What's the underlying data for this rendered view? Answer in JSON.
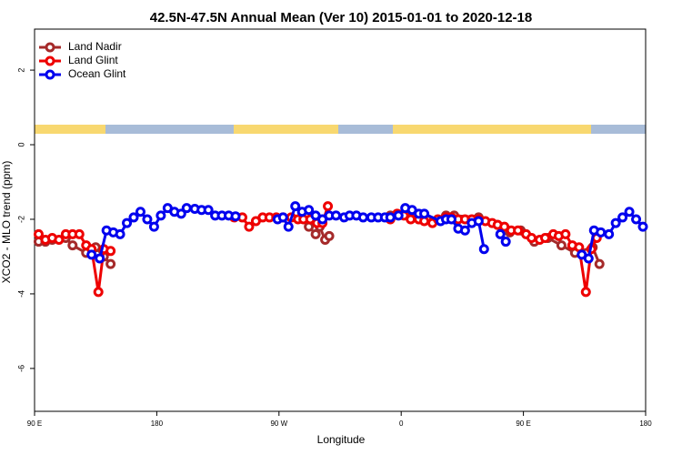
{
  "chart_data": {
    "type": "line",
    "title": "42.5N-47.5N Annual Mean (Ver 10)   2015-01-01 to 2020-12-18",
    "xlabel": "Longitude",
    "ylabel": "XCO2 - MLO trend (ppm)",
    "xlim": [
      90,
      540
    ],
    "ylim": [
      -7.15,
      3.1
    ],
    "xticks": [
      {
        "value": 90,
        "label": "90 E"
      },
      180,
      {
        "value": 270,
        "label": "90 W"
      },
      {
        "value": 360,
        "label": "0"
      },
      {
        "value": 450,
        "label": "90 E"
      },
      {
        "value": 540,
        "label": "180"
      }
    ],
    "yticks": [
      -6,
      -4,
      -2,
      0,
      2
    ],
    "legend": "top-left",
    "series": [
      {
        "name": "Land Nadir",
        "color": "#a52a2a",
        "x": [
          93,
          98,
          103,
          113,
          118,
          128,
          135,
          141,
          146,
          null,
          292,
          297,
          300,
          304,
          307,
          null,
          352,
          363,
          373,
          379,
          393,
          399,
          417,
          431,
          440,
          448,
          458,
          468,
          478,
          488,
          501,
          506
        ],
        "values": [
          -2.6,
          -2.6,
          -2.55,
          -2.5,
          -2.7,
          -2.9,
          -2.75,
          -3.0,
          -3.2,
          null,
          -2.2,
          -2.4,
          -2.2,
          -2.55,
          -2.45,
          null,
          -1.9,
          -1.8,
          -2.0,
          -2.0,
          -1.9,
          -1.9,
          -1.95,
          -2.15,
          -2.35,
          -2.3,
          -2.6,
          -2.5,
          -2.7,
          -2.9,
          -2.75,
          -3.2
        ]
      },
      {
        "name": "Land Glint",
        "color": "#ee0000",
        "x": [
          93,
          98,
          103,
          108,
          113,
          118,
          123,
          128,
          132,
          137,
          141,
          146,
          null,
          237,
          243,
          248,
          253,
          258,
          263,
          268,
          273,
          279,
          284,
          288,
          293,
          298,
          302,
          306,
          null,
          352,
          357,
          362,
          367,
          373,
          377,
          383,
          387,
          393,
          397,
          402,
          407,
          412,
          417,
          422,
          427,
          431,
          436,
          441,
          446,
          452,
          456,
          462,
          466,
          472,
          476,
          481,
          486,
          491,
          496,
          500,
          504
        ],
        "values": [
          -2.4,
          -2.55,
          -2.5,
          -2.55,
          -2.4,
          -2.4,
          -2.4,
          -2.7,
          -2.8,
          -3.95,
          -2.8,
          -2.85,
          null,
          -1.95,
          -1.95,
          -2.2,
          -2.05,
          -1.95,
          -1.95,
          -1.95,
          -1.95,
          -1.95,
          -2.0,
          -2.0,
          -2.0,
          -2.1,
          -2.1,
          -1.65,
          null,
          -2.0,
          -1.85,
          -1.9,
          -2.0,
          -2.0,
          -2.05,
          -2.1,
          -2.0,
          -1.95,
          -1.95,
          -2.0,
          -2.0,
          -2.0,
          -2.0,
          -2.05,
          -2.1,
          -2.15,
          -2.2,
          -2.3,
          -2.3,
          -2.4,
          -2.5,
          -2.55,
          -2.5,
          -2.4,
          -2.45,
          -2.4,
          -2.7,
          -2.75,
          -3.95,
          -2.8,
          -2.5
        ]
      },
      {
        "name": "Ocean Glint",
        "color": "#0000ee",
        "x": [
          132,
          138,
          143,
          148,
          153,
          158,
          163,
          168,
          173,
          178,
          183,
          188,
          193,
          198,
          202,
          208,
          213,
          218,
          223,
          228,
          233,
          238,
          null,
          269,
          273,
          277,
          282,
          287,
          292,
          297,
          302,
          307,
          312,
          318,
          322,
          327,
          332,
          338,
          343,
          348,
          352,
          358,
          363,
          368,
          373,
          377,
          389,
          393,
          397,
          402,
          407,
          412,
          417,
          421,
          null,
          433,
          437,
          null,
          493,
          498,
          502,
          507,
          513,
          518,
          523,
          528,
          533,
          538
        ],
        "values": [
          -2.95,
          -3.05,
          -2.3,
          -2.35,
          -2.4,
          -2.1,
          -1.95,
          -1.8,
          -2.0,
          -2.2,
          -1.9,
          -1.7,
          -1.8,
          -1.85,
          -1.7,
          -1.72,
          -1.75,
          -1.75,
          -1.9,
          -1.9,
          -1.9,
          -1.92,
          null,
          -2.0,
          -1.95,
          -2.2,
          -1.65,
          -1.8,
          -1.75,
          -1.9,
          -2.0,
          -1.9,
          -1.9,
          -1.95,
          -1.9,
          -1.9,
          -1.95,
          -1.95,
          -1.95,
          -1.95,
          -1.95,
          -1.9,
          -1.7,
          -1.75,
          -1.85,
          -1.85,
          -2.05,
          -2.0,
          -2.0,
          -2.25,
          -2.3,
          -2.1,
          -2.05,
          -2.8,
          null,
          -2.4,
          -2.6,
          null,
          -2.95,
          -3.05,
          -2.3,
          -2.35,
          -2.4,
          -2.1,
          -1.95,
          -1.8,
          -2.0,
          -2.2
        ]
      }
    ]
  }
}
